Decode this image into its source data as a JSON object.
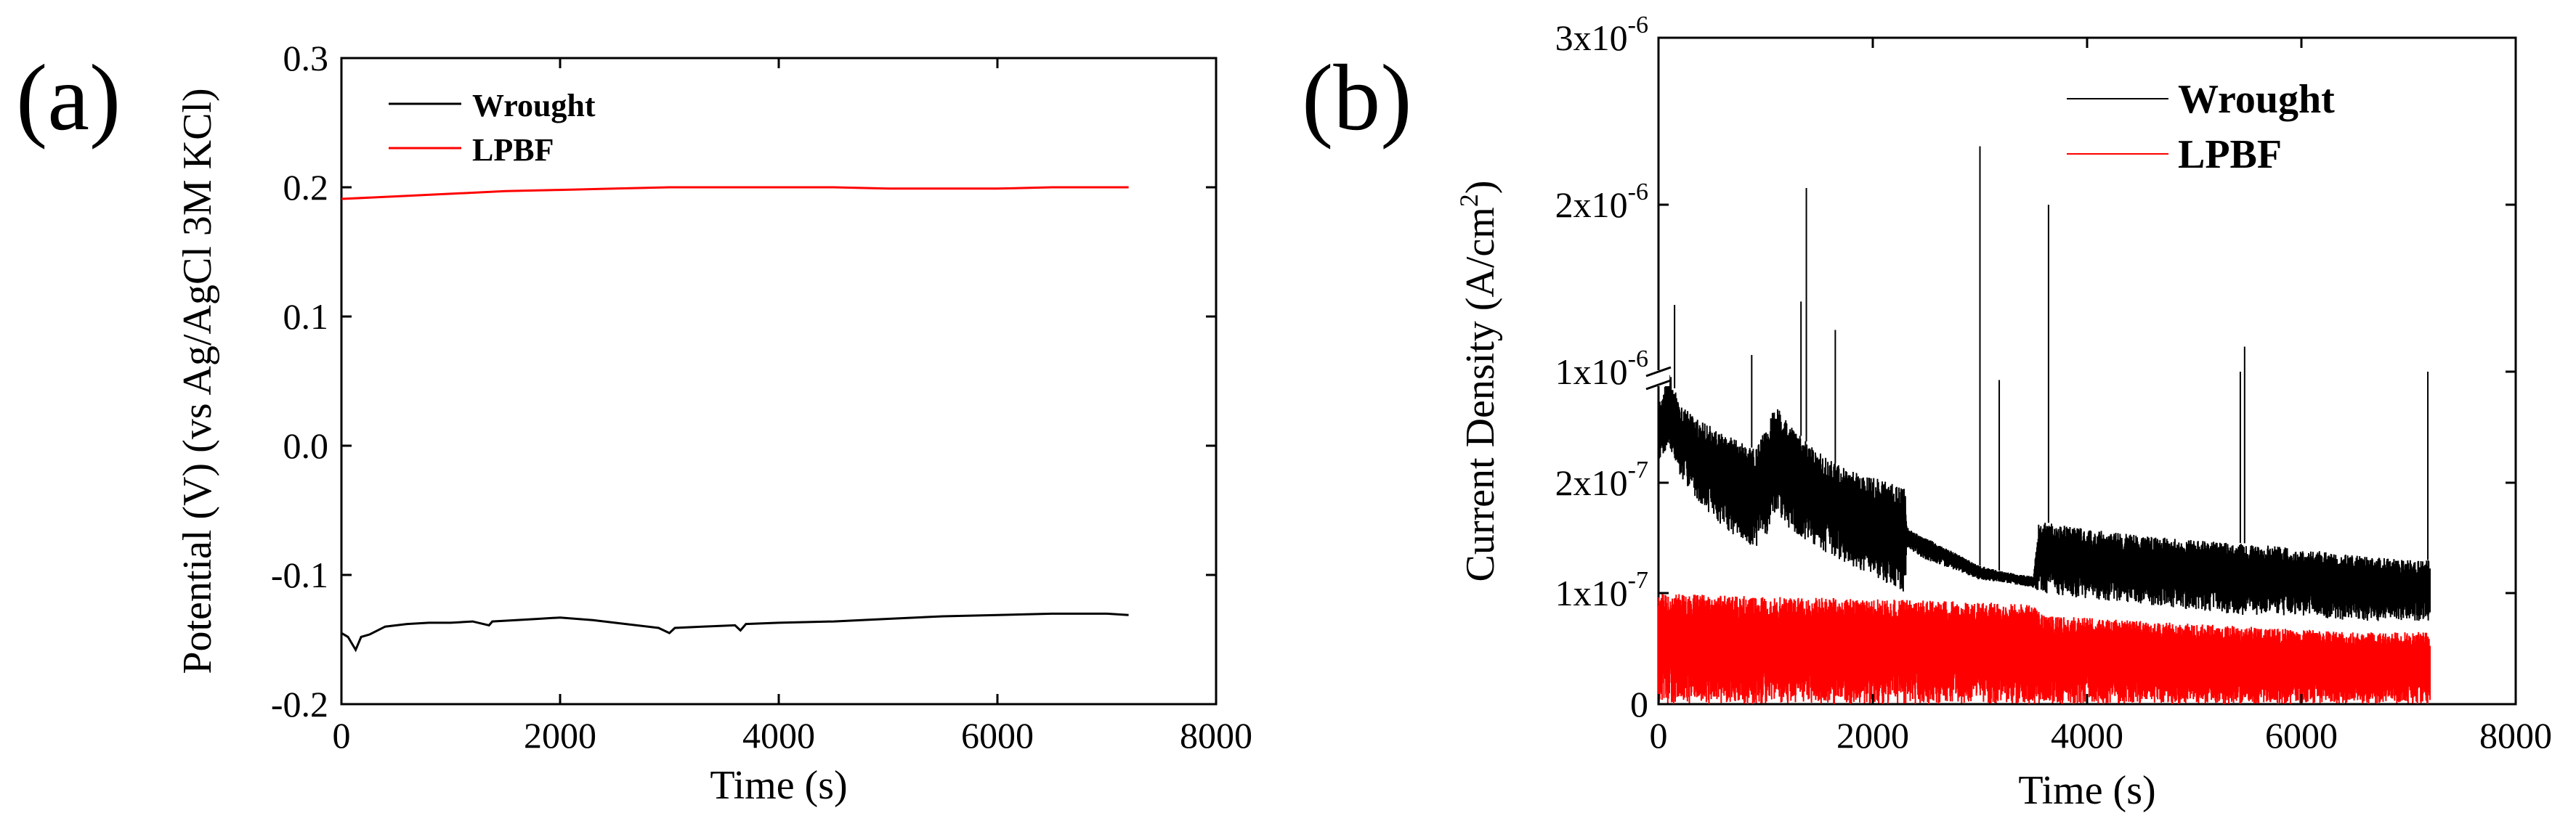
{
  "figure": {
    "colors": {
      "wrought": "#000000",
      "lpbf": "#ff0000",
      "axis": "#000000"
    }
  },
  "chart_data": [
    {
      "type": "line",
      "panel_label": "(a)",
      "title": "",
      "xlabel": "Time (s)",
      "ylabel": "Potential (V) (vs Ag/AgCl 3M KCl)",
      "xlim": [
        0,
        8000
      ],
      "ylim": [
        -0.2,
        0.3
      ],
      "x_ticks": [
        0,
        2000,
        4000,
        6000,
        8000
      ],
      "x_tick_labels": [
        "0",
        "2000",
        "4000",
        "6000",
        "8000"
      ],
      "y_ticks": [
        -0.2,
        -0.1,
        0.0,
        0.1,
        0.2,
        0.3
      ],
      "y_tick_labels": [
        "-0.2",
        "-0.1",
        "0.0",
        "0.1",
        "0.2",
        "0.3"
      ],
      "legend": [
        "Wrought",
        "LPBF"
      ],
      "legend_position": "top-left",
      "series": [
        {
          "name": "Wrought",
          "color": "#000000",
          "x": [
            0,
            60,
            130,
            180,
            260,
            400,
            600,
            800,
            1000,
            1200,
            1350,
            1380,
            1600,
            1800,
            2000,
            2300,
            2600,
            2900,
            3000,
            3050,
            3300,
            3600,
            3650,
            3700,
            4000,
            4500,
            5000,
            5500,
            6000,
            6500,
            7000,
            7200
          ],
          "y": [
            -0.145,
            -0.148,
            -0.158,
            -0.148,
            -0.146,
            -0.14,
            -0.138,
            -0.137,
            -0.137,
            -0.136,
            -0.139,
            -0.136,
            -0.135,
            -0.134,
            -0.133,
            -0.135,
            -0.138,
            -0.141,
            -0.145,
            -0.141,
            -0.14,
            -0.139,
            -0.143,
            -0.138,
            -0.137,
            -0.136,
            -0.134,
            -0.132,
            -0.131,
            -0.13,
            -0.13,
            -0.131
          ]
        },
        {
          "name": "LPBF",
          "color": "#ff0000",
          "x": [
            0,
            500,
            1000,
            1500,
            2000,
            2500,
            3000,
            3500,
            4000,
            4500,
            5000,
            5500,
            6000,
            6500,
            7000,
            7200
          ],
          "y": [
            0.191,
            0.193,
            0.195,
            0.197,
            0.198,
            0.199,
            0.2,
            0.2,
            0.2,
            0.2,
            0.199,
            0.199,
            0.199,
            0.2,
            0.2,
            0.2
          ]
        }
      ]
    },
    {
      "type": "line",
      "panel_label": "(b)",
      "title": "",
      "xlabel": "Time (s)",
      "ylabel": "Current Density (A/cm",
      "ylabel_superscript": "2",
      "ylabel_end": ")",
      "xlim": [
        0,
        8000
      ],
      "ylim": [
        0,
        3e-06
      ],
      "y_axis_break": "between 3x10^-7 and 1x10^-6 (lower segment 0 to 3x10^-7, upper segment 1x10^-6 to 3x10^-6)",
      "x_ticks": [
        0,
        2000,
        4000,
        6000,
        8000
      ],
      "x_tick_labels": [
        "0",
        "2000",
        "4000",
        "6000",
        "8000"
      ],
      "y_tick_labels": [
        {
          "base": "0",
          "exp": ""
        },
        {
          "base": "1x10",
          "exp": "-7"
        },
        {
          "base": "2x10",
          "exp": "-7"
        },
        {
          "base": "1x10",
          "exp": "-6"
        },
        {
          "base": "2x10",
          "exp": "-6"
        },
        {
          "base": "3x10",
          "exp": "-6"
        }
      ],
      "y_tick_values": [
        0,
        1e-07,
        2e-07,
        1e-06,
        2e-06,
        3e-06
      ],
      "legend": [
        "Wrought",
        "LPBF"
      ],
      "legend_position": "top-right",
      "series": [
        {
          "name": "Wrought",
          "color": "#000000",
          "description": "noisy signal; upper and lower envelopes",
          "x": [
            0,
            100,
            200,
            400,
            600,
            800,
            900,
            1000,
            1100,
            1200,
            1400,
            1600,
            1800,
            2000,
            2300,
            2320,
            2500,
            2800,
            3000,
            3200,
            3500,
            3550,
            4000,
            4500,
            5000,
            5500,
            6000,
            6500,
            7000,
            7200
          ],
          "upper": [
            2.7e-07,
            3e-07,
            2.7e-07,
            2.55e-07,
            2.45e-07,
            2.35e-07,
            2.3e-07,
            2.5e-07,
            2.7e-07,
            2.55e-07,
            2.35e-07,
            2.2e-07,
            2.1e-07,
            2.05e-07,
            1.95e-07,
            1.6e-07,
            1.5e-07,
            1.35e-07,
            1.25e-07,
            1.2e-07,
            1.15e-07,
            1.65e-07,
            1.58e-07,
            1.52e-07,
            1.48e-07,
            1.45e-07,
            1.4e-07,
            1.35e-07,
            1.3e-07,
            1.3e-07
          ],
          "lower": [
            2.2e-07,
            2.3e-07,
            2.05e-07,
            1.8e-07,
            1.6e-07,
            1.45e-07,
            1.4e-07,
            1.5e-07,
            1.75e-07,
            1.6e-07,
            1.45e-07,
            1.35e-07,
            1.25e-07,
            1.15e-07,
            1e-07,
            1.4e-07,
            1.3e-07,
            1.2e-07,
            1.12e-07,
            1.1e-07,
            1.05e-07,
            1e-07,
            9.5e-08,
            9e-08,
            8.5e-08,
            8e-08,
            8e-08,
            7.5e-08,
            7.5e-08,
            7.5e-08
          ]
        },
        {
          "name": "LPBF",
          "color": "#ff0000",
          "description": "noisy signal from 0 up to upper envelope",
          "x": [
            0,
            1000,
            2000,
            3000,
            3500,
            3600,
            4500,
            5500,
            6500,
            7200
          ],
          "upper": [
            1e-07,
            9.7e-08,
            9.5e-08,
            9.2e-08,
            9e-08,
            8e-08,
            7.5e-08,
            7e-08,
            6.5e-08,
            6.5e-08
          ],
          "lower": [
            0,
            0,
            0,
            0,
            0,
            0,
            0,
            0,
            0,
            0
          ]
        }
      ],
      "wrought_spikes": [
        {
          "x": 150,
          "y": 1.4e-06
        },
        {
          "x": 870,
          "y": 1.1e-06
        },
        {
          "x": 1330,
          "y": 1.42e-06
        },
        {
          "x": 1380,
          "y": 2.1e-06
        },
        {
          "x": 1650,
          "y": 1.25e-06
        },
        {
          "x": 3000,
          "y": 2.35e-06
        },
        {
          "x": 3180,
          "y": 9.5e-07
        },
        {
          "x": 3640,
          "y": 2e-06
        },
        {
          "x": 5430,
          "y": 1e-06
        },
        {
          "x": 5470,
          "y": 1.15e-06
        },
        {
          "x": 7180,
          "y": 1e-06
        }
      ]
    }
  ]
}
